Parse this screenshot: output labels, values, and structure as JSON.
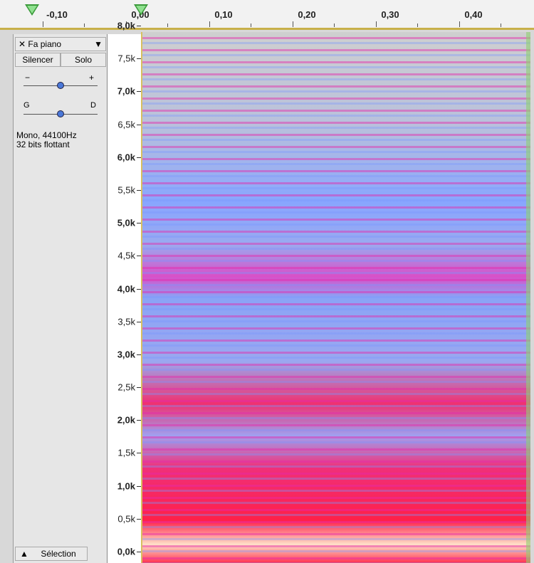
{
  "ruler": {
    "labels": [
      "-0,10",
      "0,00",
      "0,10",
      "0,20",
      "0,30",
      "0,40"
    ]
  },
  "track": {
    "name": "Fa piano",
    "mute": "Silencer",
    "solo": "Solo",
    "gain_min": "−",
    "gain_max": "+",
    "pan_left": "G",
    "pan_right": "D",
    "info": [
      "Mono, 44100Hz",
      "32 bits flottant"
    ],
    "select": "Sélection"
  },
  "freq_axis": {
    "labels": [
      "8,0k",
      "7,5k",
      "7,0k",
      "6,5k",
      "6,0k",
      "5,5k",
      "5,0k",
      "4,5k",
      "4,0k",
      "3,5k",
      "3,0k",
      "2,5k",
      "2,0k",
      "1,5k",
      "1,0k",
      "0,5k",
      "0,0k"
    ]
  }
}
